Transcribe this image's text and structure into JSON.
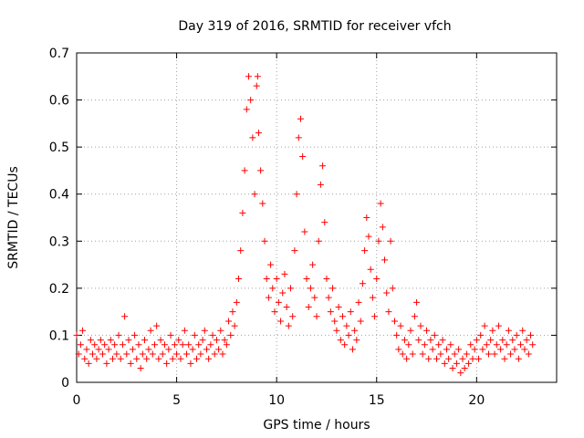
{
  "chart_data": {
    "type": "scatter",
    "title": "Day 319 of 2016, SRMTID for receiver vfch",
    "xlabel": "GPS time / hours",
    "ylabel": "SRMTID / TECUs",
    "xlim": [
      0,
      24
    ],
    "ylim": [
      0,
      0.7
    ],
    "xticks": [
      0,
      5,
      10,
      15,
      20
    ],
    "yticks": [
      0,
      0.1,
      0.2,
      0.3,
      0.4,
      0.5,
      0.6,
      0.7
    ],
    "x_tick_labels": [
      "0",
      "5",
      "10",
      "15",
      "20"
    ],
    "y_tick_labels": [
      "0",
      "0.1",
      "0.2",
      "0.3",
      "0.4",
      "0.5",
      "0.6",
      "0.7"
    ],
    "grid": true,
    "marker": "+",
    "series": [
      {
        "name": "SRMTID",
        "color": "#ff0000",
        "points": [
          [
            0.0,
            0.1
          ],
          [
            0.1,
            0.06
          ],
          [
            0.2,
            0.08
          ],
          [
            0.3,
            0.11
          ],
          [
            0.4,
            0.05
          ],
          [
            0.5,
            0.07
          ],
          [
            0.6,
            0.04
          ],
          [
            0.7,
            0.09
          ],
          [
            0.8,
            0.06
          ],
          [
            0.9,
            0.08
          ],
          [
            1.0,
            0.05
          ],
          [
            1.1,
            0.07
          ],
          [
            1.2,
            0.09
          ],
          [
            1.3,
            0.06
          ],
          [
            1.4,
            0.08
          ],
          [
            1.5,
            0.04
          ],
          [
            1.6,
            0.07
          ],
          [
            1.7,
            0.09
          ],
          [
            1.8,
            0.05
          ],
          [
            1.9,
            0.08
          ],
          [
            2.0,
            0.06
          ],
          [
            2.1,
            0.1
          ],
          [
            2.2,
            0.05
          ],
          [
            2.3,
            0.08
          ],
          [
            2.4,
            0.14
          ],
          [
            2.5,
            0.06
          ],
          [
            2.6,
            0.09
          ],
          [
            2.7,
            0.04
          ],
          [
            2.8,
            0.07
          ],
          [
            2.9,
            0.1
          ],
          [
            3.0,
            0.05
          ],
          [
            3.1,
            0.08
          ],
          [
            3.2,
            0.03
          ],
          [
            3.3,
            0.06
          ],
          [
            3.4,
            0.09
          ],
          [
            3.5,
            0.05
          ],
          [
            3.6,
            0.07
          ],
          [
            3.7,
            0.11
          ],
          [
            3.8,
            0.06
          ],
          [
            3.9,
            0.08
          ],
          [
            4.0,
            0.12
          ],
          [
            4.1,
            0.05
          ],
          [
            4.2,
            0.09
          ],
          [
            4.3,
            0.06
          ],
          [
            4.4,
            0.08
          ],
          [
            4.5,
            0.04
          ],
          [
            4.6,
            0.07
          ],
          [
            4.7,
            0.1
          ],
          [
            4.8,
            0.05
          ],
          [
            4.9,
            0.08
          ],
          [
            5.0,
            0.06
          ],
          [
            5.1,
            0.09
          ],
          [
            5.2,
            0.05
          ],
          [
            5.3,
            0.08
          ],
          [
            5.4,
            0.11
          ],
          [
            5.5,
            0.06
          ],
          [
            5.6,
            0.08
          ],
          [
            5.7,
            0.04
          ],
          [
            5.8,
            0.07
          ],
          [
            5.9,
            0.1
          ],
          [
            6.0,
            0.05
          ],
          [
            6.1,
            0.08
          ],
          [
            6.2,
            0.06
          ],
          [
            6.3,
            0.09
          ],
          [
            6.4,
            0.11
          ],
          [
            6.5,
            0.07
          ],
          [
            6.6,
            0.05
          ],
          [
            6.7,
            0.08
          ],
          [
            6.8,
            0.1
          ],
          [
            6.9,
            0.06
          ],
          [
            7.0,
            0.09
          ],
          [
            7.1,
            0.07
          ],
          [
            7.2,
            0.11
          ],
          [
            7.3,
            0.06
          ],
          [
            7.4,
            0.09
          ],
          [
            7.5,
            0.08
          ],
          [
            7.6,
            0.13
          ],
          [
            7.7,
            0.1
          ],
          [
            7.8,
            0.15
          ],
          [
            7.9,
            0.12
          ],
          [
            8.0,
            0.17
          ],
          [
            8.1,
            0.22
          ],
          [
            8.2,
            0.28
          ],
          [
            8.3,
            0.36
          ],
          [
            8.4,
            0.45
          ],
          [
            8.5,
            0.58
          ],
          [
            8.6,
            0.65
          ],
          [
            8.7,
            0.6
          ],
          [
            8.8,
            0.52
          ],
          [
            8.9,
            0.4
          ],
          [
            9.0,
            0.63
          ],
          [
            9.05,
            0.65
          ],
          [
            9.1,
            0.53
          ],
          [
            9.2,
            0.45
          ],
          [
            9.3,
            0.38
          ],
          [
            9.4,
            0.3
          ],
          [
            9.5,
            0.22
          ],
          [
            9.6,
            0.18
          ],
          [
            9.7,
            0.25
          ],
          [
            9.8,
            0.2
          ],
          [
            9.9,
            0.15
          ],
          [
            10.0,
            0.22
          ],
          [
            10.1,
            0.17
          ],
          [
            10.2,
            0.13
          ],
          [
            10.3,
            0.19
          ],
          [
            10.4,
            0.23
          ],
          [
            10.5,
            0.16
          ],
          [
            10.6,
            0.12
          ],
          [
            10.7,
            0.2
          ],
          [
            10.8,
            0.14
          ],
          [
            10.9,
            0.28
          ],
          [
            11.0,
            0.4
          ],
          [
            11.1,
            0.52
          ],
          [
            11.2,
            0.56
          ],
          [
            11.3,
            0.48
          ],
          [
            11.4,
            0.32
          ],
          [
            11.5,
            0.22
          ],
          [
            11.6,
            0.16
          ],
          [
            11.7,
            0.2
          ],
          [
            11.8,
            0.25
          ],
          [
            11.9,
            0.18
          ],
          [
            12.0,
            0.14
          ],
          [
            12.1,
            0.3
          ],
          [
            12.2,
            0.42
          ],
          [
            12.3,
            0.46
          ],
          [
            12.4,
            0.34
          ],
          [
            12.5,
            0.22
          ],
          [
            12.6,
            0.18
          ],
          [
            12.7,
            0.15
          ],
          [
            12.8,
            0.2
          ],
          [
            12.9,
            0.13
          ],
          [
            13.0,
            0.11
          ],
          [
            13.1,
            0.16
          ],
          [
            13.2,
            0.09
          ],
          [
            13.3,
            0.14
          ],
          [
            13.4,
            0.08
          ],
          [
            13.5,
            0.12
          ],
          [
            13.6,
            0.1
          ],
          [
            13.7,
            0.15
          ],
          [
            13.8,
            0.07
          ],
          [
            13.9,
            0.11
          ],
          [
            14.0,
            0.09
          ],
          [
            14.1,
            0.17
          ],
          [
            14.2,
            0.13
          ],
          [
            14.3,
            0.21
          ],
          [
            14.4,
            0.28
          ],
          [
            14.5,
            0.35
          ],
          [
            14.6,
            0.31
          ],
          [
            14.7,
            0.24
          ],
          [
            14.8,
            0.18
          ],
          [
            14.9,
            0.14
          ],
          [
            15.0,
            0.22
          ],
          [
            15.1,
            0.3
          ],
          [
            15.2,
            0.38
          ],
          [
            15.3,
            0.33
          ],
          [
            15.4,
            0.26
          ],
          [
            15.5,
            0.19
          ],
          [
            15.6,
            0.15
          ],
          [
            15.7,
            0.3
          ],
          [
            15.8,
            0.2
          ],
          [
            15.9,
            0.13
          ],
          [
            16.0,
            0.1
          ],
          [
            16.1,
            0.07
          ],
          [
            16.2,
            0.12
          ],
          [
            16.3,
            0.06
          ],
          [
            16.4,
            0.09
          ],
          [
            16.5,
            0.05
          ],
          [
            16.6,
            0.08
          ],
          [
            16.7,
            0.11
          ],
          [
            16.8,
            0.06
          ],
          [
            16.9,
            0.14
          ],
          [
            17.0,
            0.17
          ],
          [
            17.1,
            0.09
          ],
          [
            17.2,
            0.12
          ],
          [
            17.3,
            0.06
          ],
          [
            17.4,
            0.08
          ],
          [
            17.5,
            0.11
          ],
          [
            17.6,
            0.05
          ],
          [
            17.7,
            0.09
          ],
          [
            17.8,
            0.07
          ],
          [
            17.9,
            0.1
          ],
          [
            18.0,
            0.05
          ],
          [
            18.1,
            0.08
          ],
          [
            18.2,
            0.06
          ],
          [
            18.3,
            0.09
          ],
          [
            18.4,
            0.04
          ],
          [
            18.5,
            0.07
          ],
          [
            18.6,
            0.05
          ],
          [
            18.7,
            0.08
          ],
          [
            18.8,
            0.03
          ],
          [
            18.9,
            0.06
          ],
          [
            19.0,
            0.04
          ],
          [
            19.1,
            0.07
          ],
          [
            19.2,
            0.02
          ],
          [
            19.3,
            0.05
          ],
          [
            19.4,
            0.03
          ],
          [
            19.5,
            0.06
          ],
          [
            19.6,
            0.04
          ],
          [
            19.7,
            0.08
          ],
          [
            19.8,
            0.05
          ],
          [
            19.9,
            0.07
          ],
          [
            20.0,
            0.09
          ],
          [
            20.1,
            0.05
          ],
          [
            20.2,
            0.1
          ],
          [
            20.3,
            0.07
          ],
          [
            20.4,
            0.12
          ],
          [
            20.5,
            0.08
          ],
          [
            20.6,
            0.06
          ],
          [
            20.7,
            0.09
          ],
          [
            20.8,
            0.11
          ],
          [
            20.9,
            0.06
          ],
          [
            21.0,
            0.08
          ],
          [
            21.1,
            0.12
          ],
          [
            21.2,
            0.07
          ],
          [
            21.3,
            0.09
          ],
          [
            21.4,
            0.05
          ],
          [
            21.5,
            0.08
          ],
          [
            21.6,
            0.11
          ],
          [
            21.7,
            0.06
          ],
          [
            21.8,
            0.09
          ],
          [
            21.9,
            0.07
          ],
          [
            22.0,
            0.1
          ],
          [
            22.1,
            0.05
          ],
          [
            22.2,
            0.08
          ],
          [
            22.3,
            0.11
          ],
          [
            22.4,
            0.07
          ],
          [
            22.5,
            0.09
          ],
          [
            22.6,
            0.06
          ],
          [
            22.7,
            0.1
          ],
          [
            22.8,
            0.08
          ]
        ]
      }
    ]
  }
}
